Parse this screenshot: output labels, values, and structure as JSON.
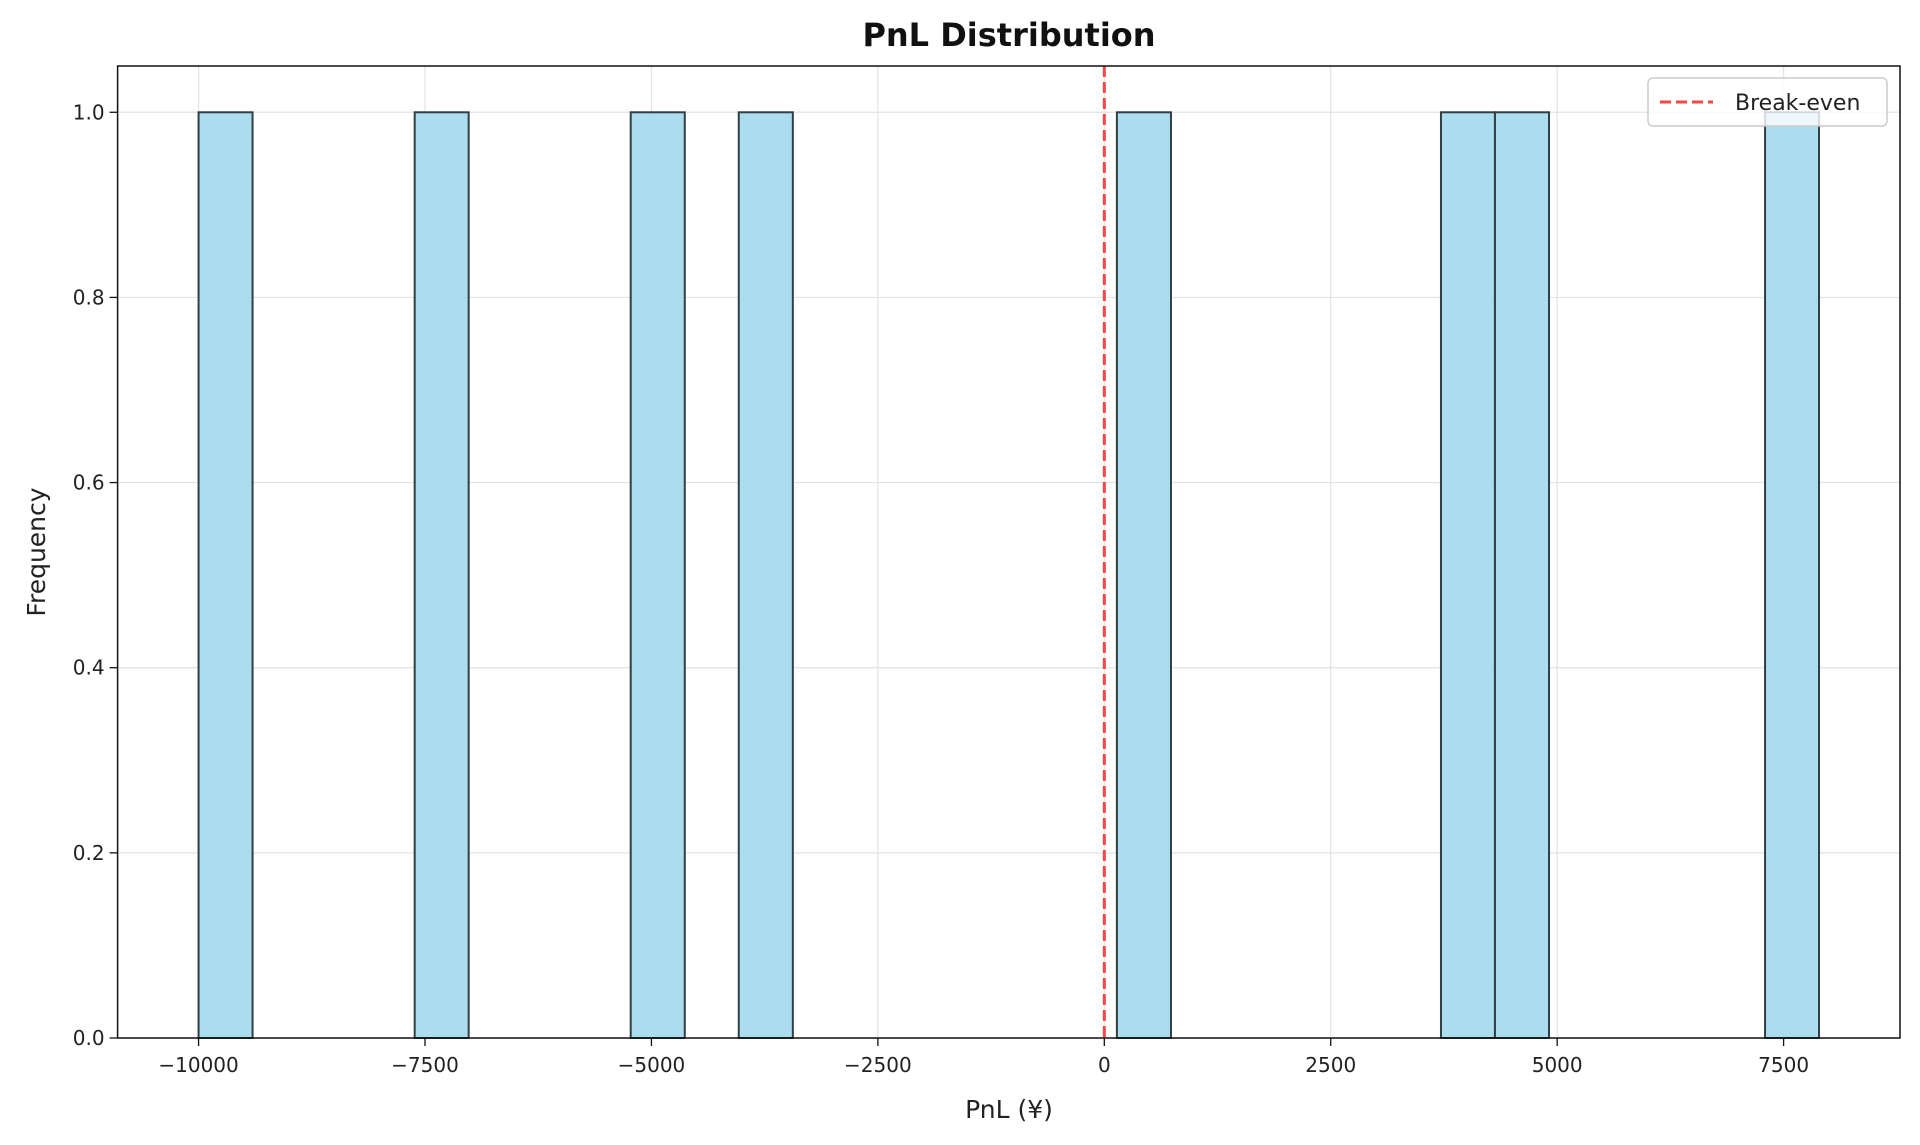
{
  "chart_data": {
    "type": "histogram",
    "title": "PnL Distribution",
    "xlabel": "PnL (¥)",
    "ylabel": "Frequency",
    "bin_count": 30,
    "data_range": [
      -10000,
      7891
    ],
    "bins": [
      {
        "start": -10000,
        "end": -9404,
        "count": 1
      },
      {
        "start": -7614,
        "end": -7018,
        "count": 1
      },
      {
        "start": -5229,
        "end": -4632,
        "count": 1
      },
      {
        "start": -4036,
        "end": -3439,
        "count": 1
      },
      {
        "start": 139,
        "end": 736,
        "count": 1
      },
      {
        "start": 3717,
        "end": 4313,
        "count": 1
      },
      {
        "start": 4313,
        "end": 4910,
        "count": 1
      },
      {
        "start": 6699,
        "end": 7295,
        "count": 0
      },
      {
        "start": 7295,
        "end": 7891,
        "count": 1
      }
    ],
    "xlim": [
      -10894,
      8785
    ],
    "ylim": [
      0,
      1.05
    ],
    "xticks": [
      -10000,
      -7500,
      -5000,
      -2500,
      0,
      2500,
      5000,
      7500
    ],
    "xtick_labels": [
      "−10000",
      "−7500",
      "−5000",
      "−2500",
      "0",
      "2500",
      "5000",
      "7500"
    ],
    "yticks": [
      0,
      0.2,
      0.4,
      0.6,
      0.8,
      1.0
    ],
    "ytick_labels": [
      "0.0",
      "0.2",
      "0.4",
      "0.6",
      "0.8",
      "1.0"
    ],
    "grid": true,
    "reference_line": {
      "x": 0,
      "label": "Break-even",
      "style": "dashed",
      "color": "#ff4444"
    },
    "legend": {
      "position": "top-right",
      "entries": [
        "Break-even"
      ]
    },
    "colors": {
      "bar_fill": "#a8dbee",
      "bar_edge": "#2f3f44"
    }
  }
}
